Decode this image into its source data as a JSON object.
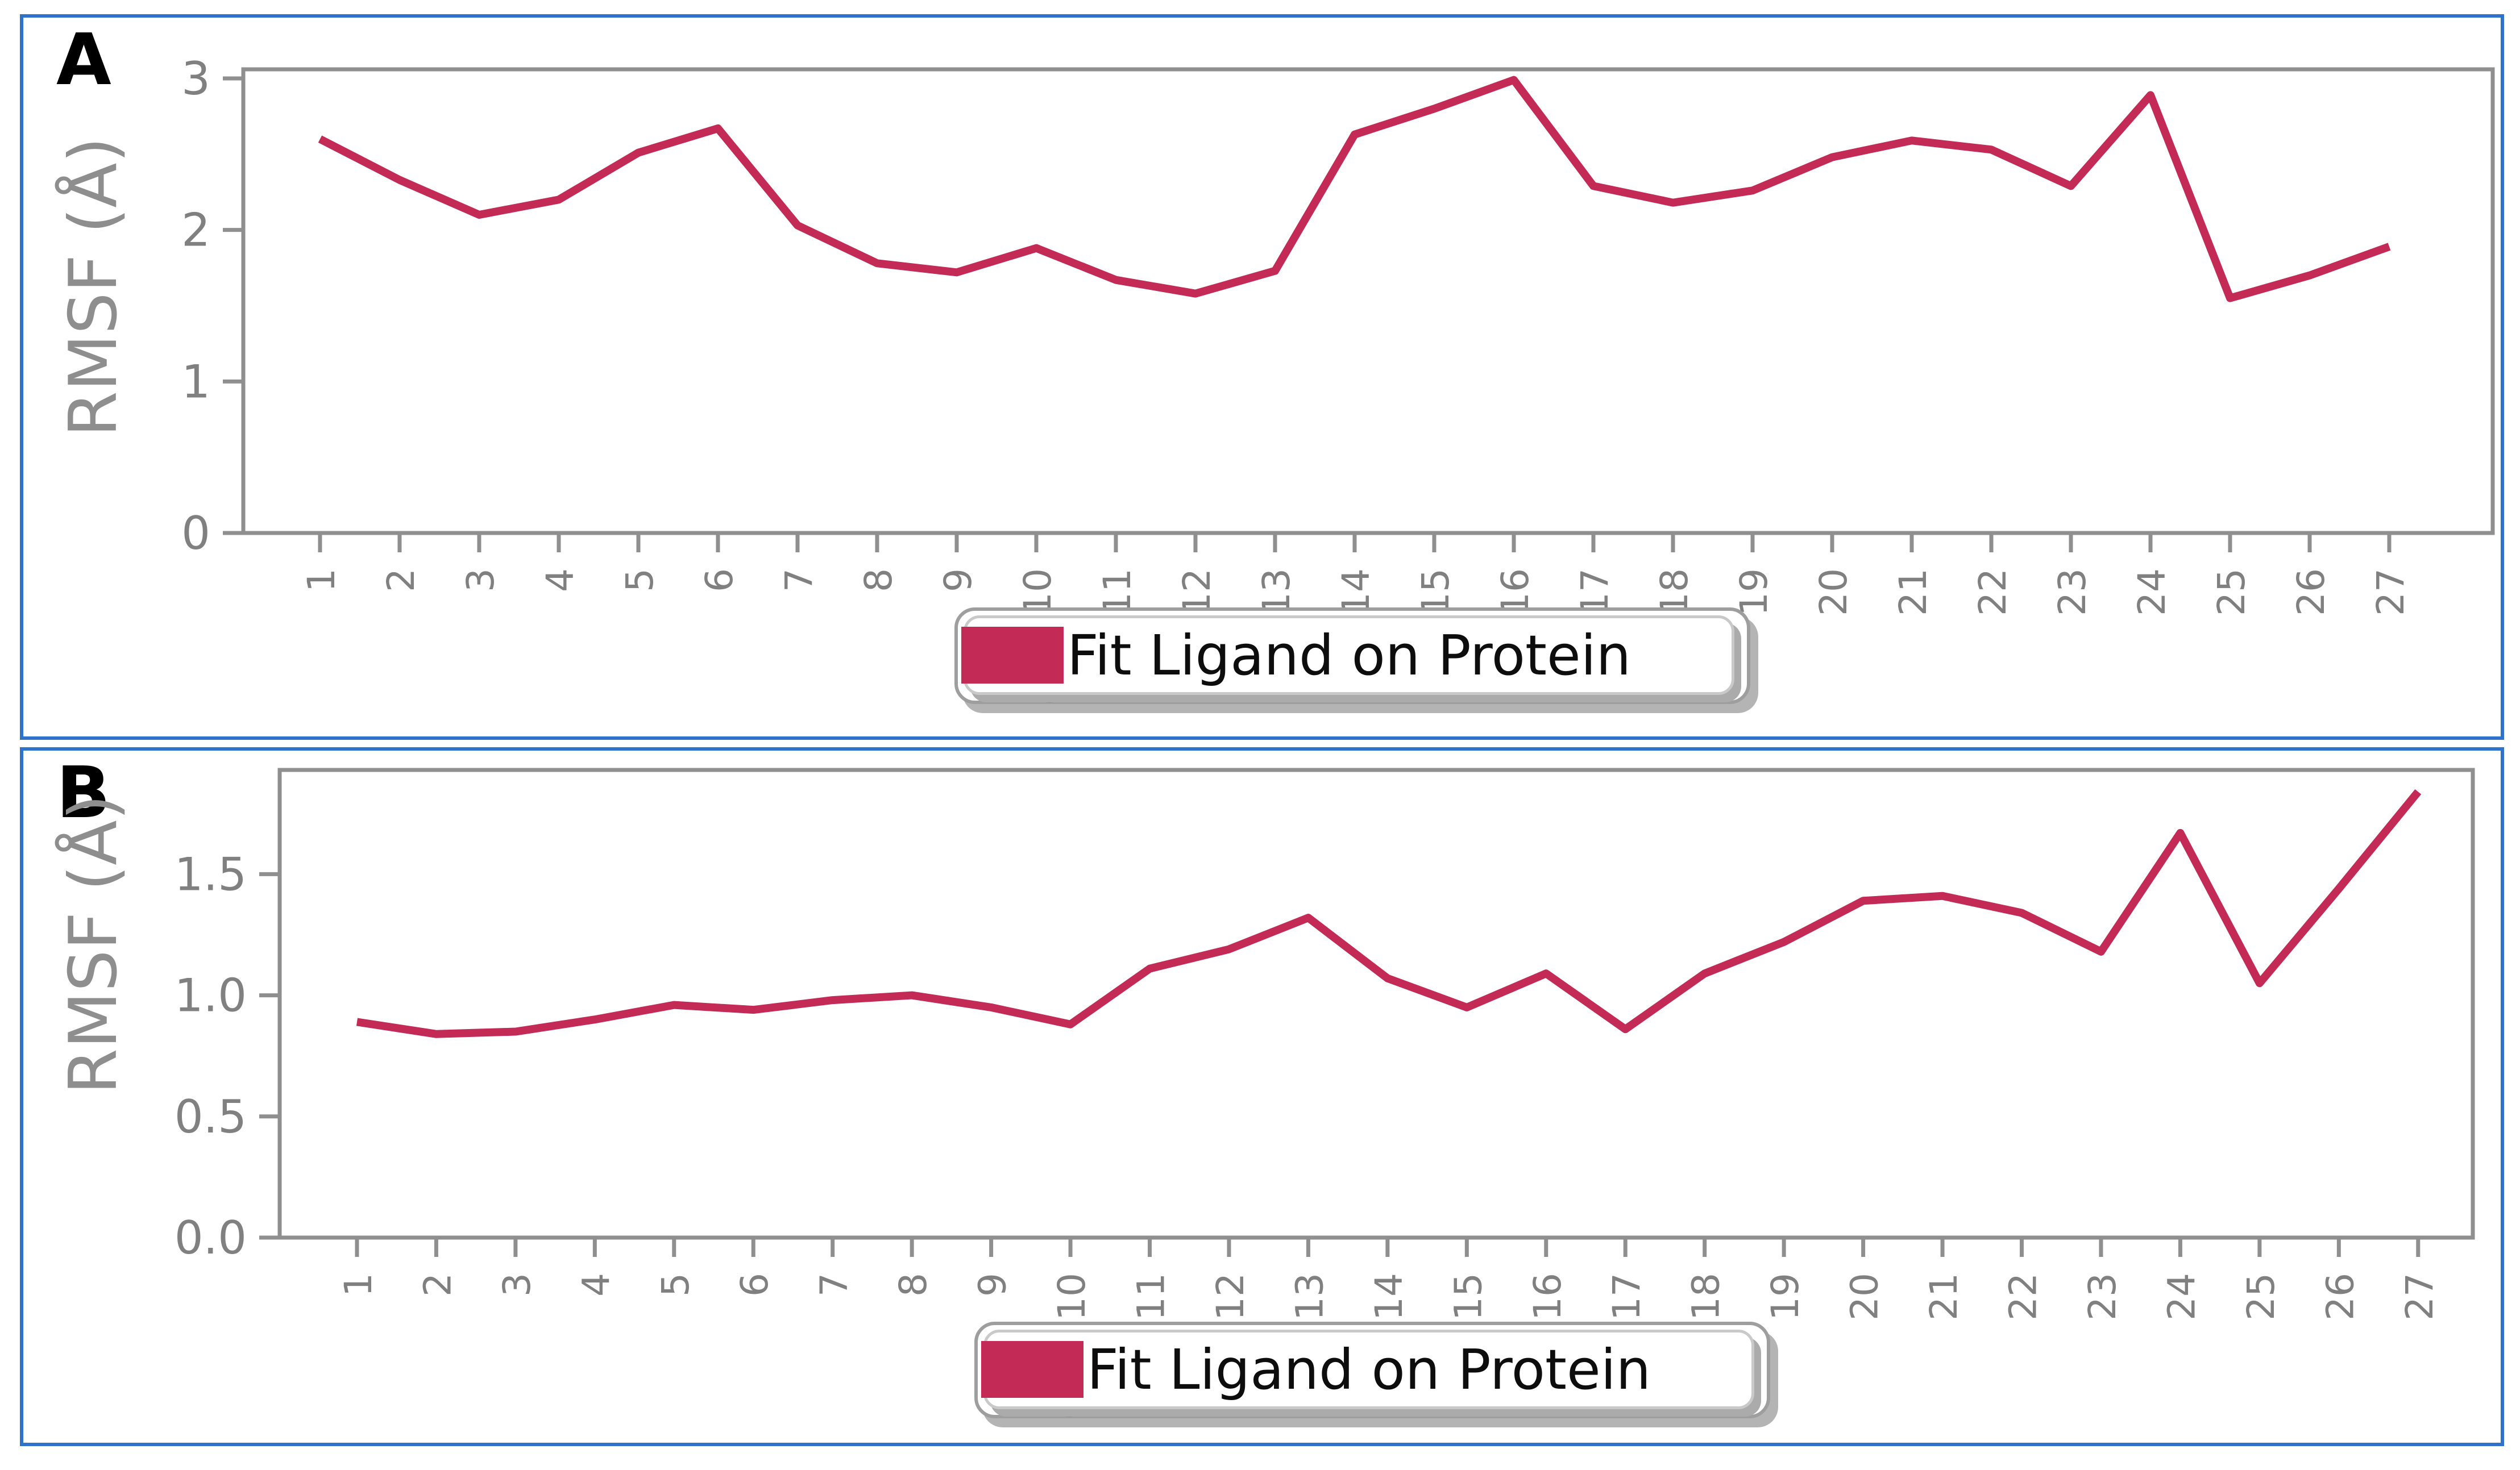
{
  "figure": {
    "panels": [
      "A",
      "B"
    ],
    "colors": {
      "line": "#C42A56",
      "frame_blue": "#2E73C9",
      "axis_gray": "#8f8f8f",
      "tick_label_gray": "#808080",
      "ylabel_gray": "#8e8e8e",
      "legend_border": "#c9c9c9",
      "legend_shadow": "#ababab",
      "legend_text": "#0d0d0d"
    }
  },
  "chart_data": [
    {
      "type": "line",
      "panel_label": "A",
      "title": "",
      "xlabel": "",
      "ylabel": "RMSF (Å)",
      "legend": {
        "position": "bottom-center",
        "entries": [
          "Fit Ligand on Protein"
        ]
      },
      "grid": false,
      "x": [
        1,
        2,
        3,
        4,
        5,
        6,
        7,
        8,
        9,
        10,
        11,
        12,
        13,
        14,
        15,
        16,
        17,
        18,
        19,
        20,
        21,
        22,
        23,
        24,
        25,
        26,
        27
      ],
      "xtick_labels": [
        "1",
        "2",
        "3",
        "4",
        "5",
        "6",
        "7",
        "8",
        "9",
        "10",
        "11",
        "12",
        "13",
        "14",
        "15",
        "16",
        "17",
        "18",
        "19",
        "20",
        "21",
        "22",
        "23",
        "24",
        "25",
        "26",
        "27"
      ],
      "xtick_rotation": 90,
      "xlim": [
        0.036,
        28.3
      ],
      "ylim": [
        0,
        3.06
      ],
      "yticks": [
        0,
        1,
        2,
        3
      ],
      "ytick_labels": [
        "0",
        "1",
        "2",
        "3"
      ],
      "series": [
        {
          "name": "Fit Ligand on Protein",
          "color": "#C42A56",
          "values": [
            2.6,
            2.33,
            2.1,
            2.2,
            2.51,
            2.67,
            2.03,
            1.78,
            1.72,
            1.88,
            1.67,
            1.58,
            1.73,
            2.63,
            2.8,
            2.99,
            2.29,
            2.18,
            2.26,
            2.48,
            2.59,
            2.53,
            2.29,
            2.89,
            1.55,
            1.7,
            1.89
          ]
        }
      ]
    },
    {
      "type": "line",
      "panel_label": "B",
      "title": "",
      "xlabel": "",
      "ylabel": "RMSF (Å)",
      "legend": {
        "position": "bottom-center",
        "entries": [
          "Fit Ligand on Protein"
        ]
      },
      "grid": false,
      "x": [
        1,
        2,
        3,
        4,
        5,
        6,
        7,
        8,
        9,
        10,
        11,
        12,
        13,
        14,
        15,
        16,
        17,
        18,
        19,
        20,
        21,
        22,
        23,
        24,
        25,
        26,
        27
      ],
      "xtick_labels": [
        "1",
        "2",
        "3",
        "4",
        "5",
        "6",
        "7",
        "8",
        "9",
        "10",
        "11",
        "12",
        "13",
        "14",
        "15",
        "16",
        "17",
        "18",
        "19",
        "20",
        "21",
        "22",
        "23",
        "24",
        "25",
        "26",
        "27"
      ],
      "xtick_rotation": 90,
      "xlim": [
        0.025,
        27.69
      ],
      "ylim": [
        0,
        1.93
      ],
      "yticks": [
        0,
        0.5,
        1.0,
        1.5
      ],
      "ytick_labels": [
        "0.0",
        "0.5",
        "1.0",
        "1.5"
      ],
      "series": [
        {
          "name": "Fit Ligand on Protein",
          "color": "#C42A56",
          "values": [
            0.89,
            0.84,
            0.85,
            0.9,
            0.96,
            0.94,
            0.98,
            1.0,
            0.95,
            0.88,
            1.11,
            1.19,
            1.32,
            1.07,
            0.95,
            1.09,
            0.86,
            1.09,
            1.22,
            1.39,
            1.41,
            1.34,
            1.18,
            1.67,
            1.05,
            1.44,
            1.84
          ]
        }
      ]
    }
  ]
}
